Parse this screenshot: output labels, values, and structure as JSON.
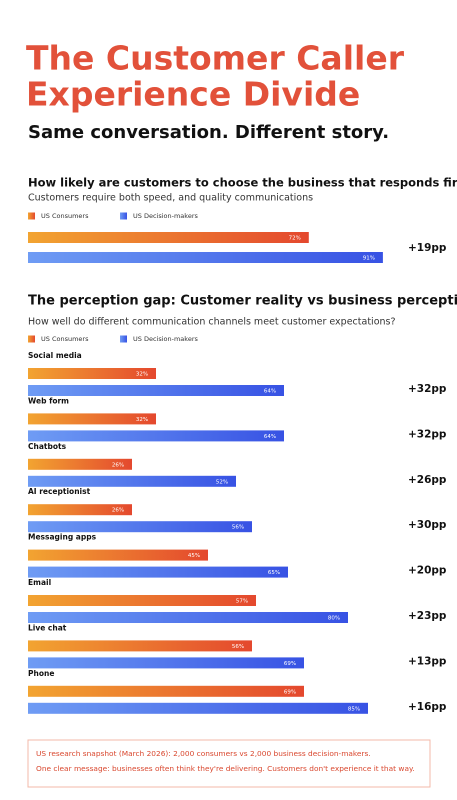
{
  "header": {
    "title_lines": [
      "The Customer Caller",
      "Experience Divide"
    ],
    "subtitle": "Same conversation. Different story."
  },
  "chart_data": [
    {
      "type": "bar",
      "orientation": "horizontal",
      "title": "How likely are customers to choose the business that responds first?",
      "subtitle": "Customers require both speed, and quality communications",
      "categories": [
        null
      ],
      "series": [
        {
          "name": "US Consumers",
          "color": "#e4482e",
          "values": [
            72
          ],
          "value_labels": [
            "72%"
          ]
        },
        {
          "name": "US Decision-makers",
          "color": "#3752e4",
          "values": [
            91
          ],
          "value_labels": [
            "91%"
          ]
        }
      ],
      "annotations": [
        "+19pp"
      ],
      "xlim": [
        0,
        100
      ]
    },
    {
      "type": "bar",
      "orientation": "horizontal",
      "title": "The perception gap: Customer reality vs business perception",
      "subtitle": "How well do different communication channels meet customer expectations?",
      "categories": [
        "Social media",
        "Web form",
        "Chatbots",
        "AI receptionist",
        "Messaging apps",
        "Email",
        "Live chat",
        "Phone"
      ],
      "series": [
        {
          "name": "US Consumers",
          "color": "#e4482e",
          "values": [
            32,
            32,
            26,
            26,
            45,
            57,
            56,
            69
          ],
          "value_labels": [
            "32%",
            "32%",
            "26%",
            "26%",
            "45%",
            "57%",
            "56%",
            "69%"
          ]
        },
        {
          "name": "US Decision-makers",
          "color": "#3752e4",
          "values": [
            64,
            64,
            52,
            56,
            65,
            80,
            69,
            85
          ],
          "value_labels": [
            "64%",
            "64%",
            "52%",
            "56%",
            "65%",
            "80%",
            "69%",
            "85%"
          ]
        }
      ],
      "annotations": [
        "+32pp",
        "+32pp",
        "+26pp",
        "+30pp",
        "+20pp",
        "+23pp",
        "+13pp",
        "+16pp"
      ],
      "xlim": [
        0,
        100
      ]
    }
  ],
  "footer": {
    "lines": [
      "US research snapshot (March 2026): 2,000 consumers vs 2,000 business decision-makers.",
      "One clear message: businesses often think they're delivering. Customers don't experience it that way."
    ]
  }
}
